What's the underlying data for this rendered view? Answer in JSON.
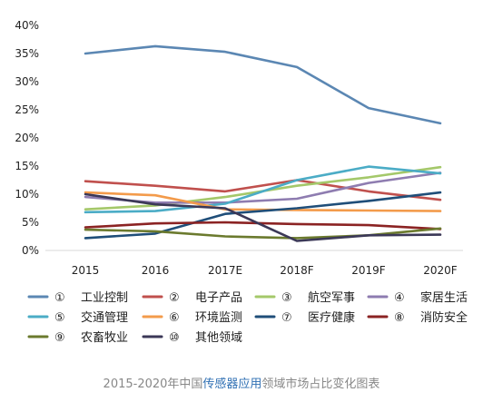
{
  "chart_data": {
    "type": "line",
    "title": "",
    "xlabel": "",
    "ylabel": "",
    "x": [
      "2015",
      "2016",
      "2017E",
      "2018F",
      "2019F",
      "2020F"
    ],
    "ylim": [
      0,
      40
    ],
    "yticks": [
      "0%",
      "5%",
      "10%",
      "15%",
      "20%",
      "25%",
      "30%",
      "35%",
      "40%"
    ],
    "grid": false,
    "legend_position": "bottom",
    "series": [
      {
        "marker": "①",
        "name": "工业控制",
        "color": "#5b87b3",
        "values": [
          35,
          36.3,
          35.3,
          32.6,
          25.3,
          22.6
        ]
      },
      {
        "marker": "②",
        "name": "电子产品",
        "color": "#c0504d",
        "values": [
          12.3,
          11.5,
          10.5,
          12.5,
          10.5,
          9
        ]
      },
      {
        "marker": "③",
        "name": "航空军事",
        "color": "#a4c86a",
        "values": [
          7.3,
          8,
          9.5,
          11.5,
          13,
          14.8
        ]
      },
      {
        "marker": "④",
        "name": "家居生活",
        "color": "#8e7cb0",
        "values": [
          9.5,
          8.5,
          8.5,
          9.2,
          12,
          13.8
        ]
      },
      {
        "marker": "⑤",
        "name": "交通管理",
        "color": "#4bacc6",
        "values": [
          6.8,
          7,
          8.3,
          12.5,
          14.9,
          13.7
        ]
      },
      {
        "marker": "⑥",
        "name": "环境监测",
        "color": "#f39b4b",
        "values": [
          10.3,
          9.8,
          7.3,
          7.2,
          7.1,
          7
        ]
      },
      {
        "marker": "⑦",
        "name": "医疗健康",
        "color": "#1f4e79",
        "values": [
          2.2,
          3,
          6.5,
          7.5,
          8.8,
          10.3
        ]
      },
      {
        "marker": "⑧",
        "name": "消防安全",
        "color": "#8b2323",
        "values": [
          4.1,
          4.8,
          5,
          4.7,
          4.5,
          3.8
        ]
      },
      {
        "marker": "⑨",
        "name": "农畜牧业",
        "color": "#6b7a2e",
        "values": [
          3.7,
          3.4,
          2.5,
          2.2,
          2.7,
          3.9
        ]
      },
      {
        "marker": "⑩",
        "name": "其他领域",
        "color": "#3b3857",
        "values": [
          10,
          8.2,
          7.5,
          1.7,
          2.7,
          2.8
        ]
      }
    ]
  },
  "caption": {
    "before": "2015-2020年中国",
    "highlight": "传感器应用",
    "after": "领域市场占比变化图表"
  }
}
